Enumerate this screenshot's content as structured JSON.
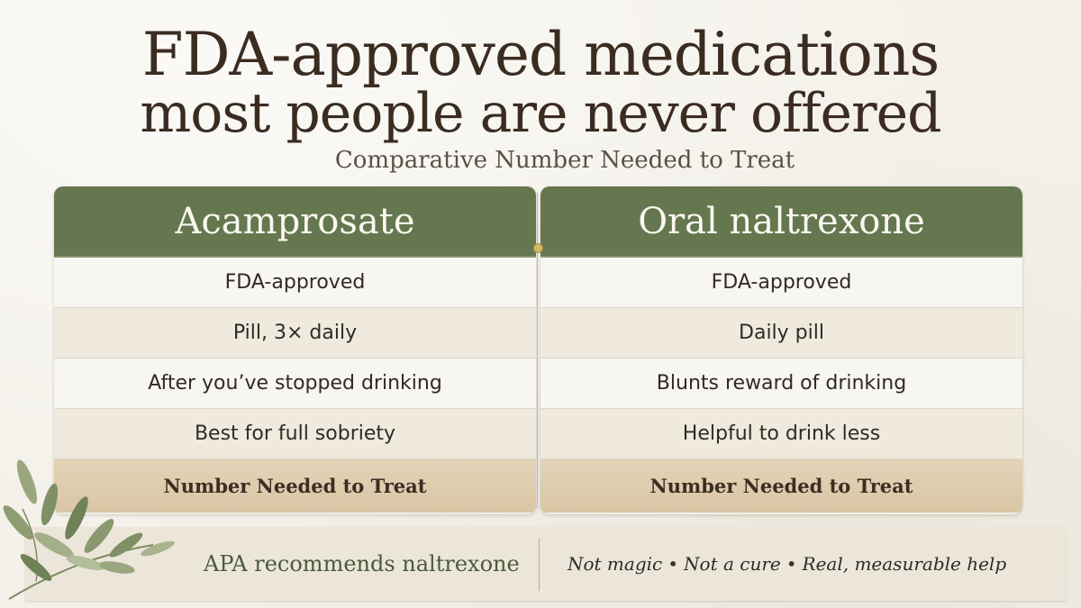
{
  "title": {
    "line1": "FDA-approved medications",
    "line2": "most people are never offered",
    "subtitle": "Comparative Number Needed to Treat"
  },
  "left_panel": {
    "header": "Acamprosate",
    "rows": [
      "FDA-approved",
      "Pill, 3× daily",
      "After you’ve stopped drinking",
      "Best for full sobriety"
    ],
    "footer": "Number Needed to Treat"
  },
  "right_panel": {
    "header": "Oral naltrexone",
    "rows": [
      "FDA-approved",
      "Daily pill",
      "Blunts reward of drinking",
      "Helpful to drink less"
    ],
    "footer": "Number Needed to Treat"
  },
  "banner": {
    "recommendation": "APA recommends naltrexone",
    "points": [
      "Not magic",
      "Not a cure",
      "Real, measurable help"
    ]
  },
  "colors": {
    "header_green": "#65774f",
    "nnt_tan": "#d9c6a5",
    "title_brown": "#3b2c22"
  }
}
